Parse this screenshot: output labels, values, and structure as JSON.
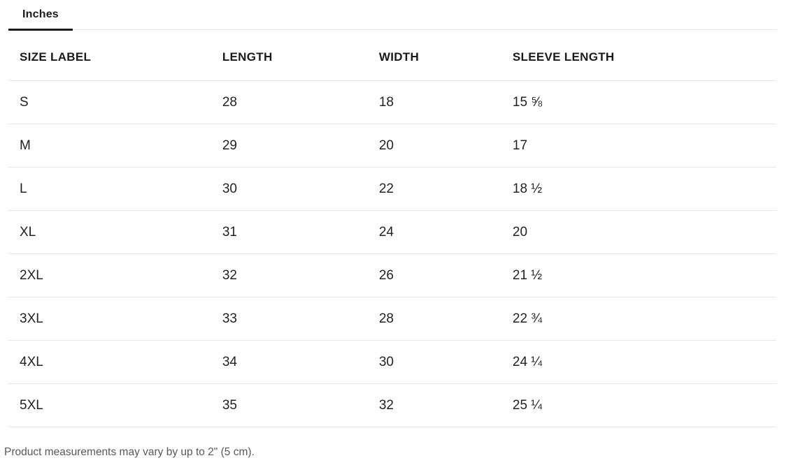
{
  "tab": {
    "label": "Inches"
  },
  "table": {
    "columns": {
      "size": "SIZE LABEL",
      "length": "LENGTH",
      "width": "WIDTH",
      "sleeve": "SLEEVE LENGTH"
    },
    "rows": [
      {
        "size": "S",
        "length": "28",
        "width": "18",
        "sleeve": "15 ⅝"
      },
      {
        "size": "M",
        "length": "29",
        "width": "20",
        "sleeve": "17"
      },
      {
        "size": "L",
        "length": "30",
        "width": "22",
        "sleeve": "18 ½"
      },
      {
        "size": "XL",
        "length": "31",
        "width": "24",
        "sleeve": "20"
      },
      {
        "size": "2XL",
        "length": "32",
        "width": "26",
        "sleeve": "21 ½"
      },
      {
        "size": "3XL",
        "length": "33",
        "width": "28",
        "sleeve": "22 ¾"
      },
      {
        "size": "4XL",
        "length": "34",
        "width": "30",
        "sleeve": "24 ¼"
      },
      {
        "size": "5XL",
        "length": "35",
        "width": "32",
        "sleeve": "25 ¼"
      }
    ]
  },
  "footer": {
    "note": "Product measurements may vary by up to 2\" (5 cm)."
  },
  "colors": {
    "text": "#1d1d1f",
    "border": "#e6e6e6",
    "tab_underline": "#1a1a1a",
    "footer_text": "#58595b"
  }
}
